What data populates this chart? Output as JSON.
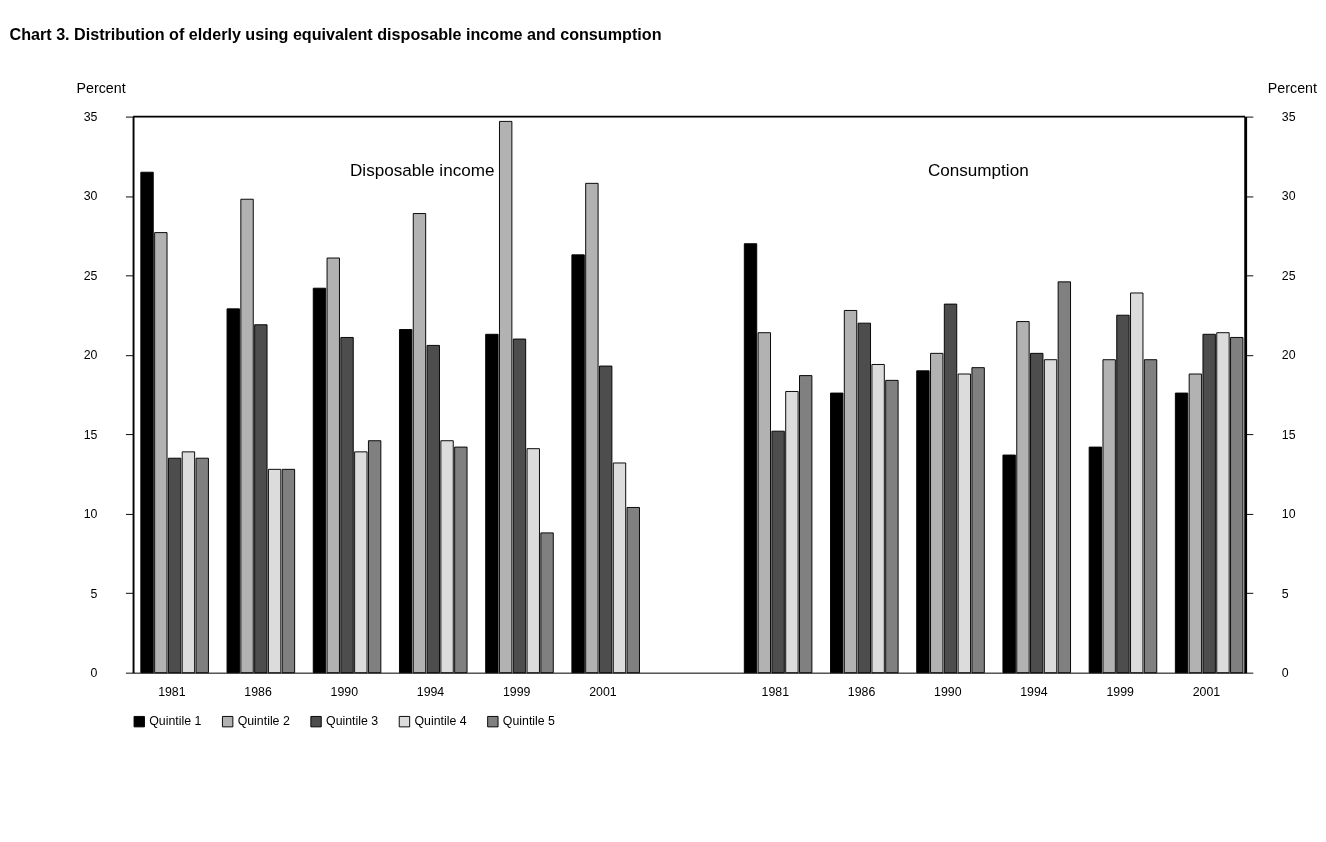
{
  "chart_data": {
    "type": "bar",
    "title": "Chart 3.  Distribution of elderly using equivalent disposable income and consumption",
    "ylabel": "Percent",
    "y2label": "Percent",
    "annotations": [
      "Disposable income",
      "Consumption"
    ],
    "categories": [
      "1981",
      "1986",
      "1990",
      "1994",
      "1999",
      "2001",
      null,
      "1981",
      "1986",
      "1990",
      "1994",
      "1999",
      "2001"
    ],
    "series": [
      {
        "name": "Quintile 1",
        "color": "#000000",
        "values": [
          31.5,
          22.9,
          24.2,
          21.6,
          21.3,
          26.3,
          null,
          27.0,
          17.6,
          19.0,
          13.7,
          14.2,
          17.6
        ]
      },
      {
        "name": "Quintile 2",
        "color": "#b2b2b2",
        "values": [
          27.7,
          29.8,
          26.1,
          28.9,
          34.7,
          30.8,
          null,
          21.4,
          22.8,
          20.1,
          22.1,
          19.7,
          18.8
        ]
      },
      {
        "name": "Quintile 3",
        "color": "#4d4d4d",
        "values": [
          13.5,
          21.9,
          21.1,
          20.6,
          21.0,
          19.3,
          null,
          15.2,
          22.0,
          23.2,
          20.1,
          22.5,
          21.3
        ]
      },
      {
        "name": "Quintile 4",
        "color": "#dcdcdc",
        "values": [
          13.9,
          12.8,
          13.9,
          14.6,
          14.1,
          13.2,
          null,
          17.7,
          19.4,
          18.8,
          19.7,
          23.9,
          21.4
        ]
      },
      {
        "name": "Quintile 5",
        "color": "#808080",
        "values": [
          13.5,
          12.8,
          14.6,
          14.2,
          8.8,
          10.4,
          null,
          18.7,
          18.4,
          19.2,
          24.6,
          19.7,
          21.1
        ]
      }
    ],
    "ylim": [
      0,
      35
    ],
    "yticks": [
      0,
      5,
      10,
      15,
      20,
      25,
      30,
      35
    ],
    "y2lim": [
      0,
      35
    ],
    "y2ticks": [
      0,
      5,
      10,
      15,
      20,
      25,
      30,
      35
    ],
    "grid": false,
    "legend": "bottom"
  }
}
